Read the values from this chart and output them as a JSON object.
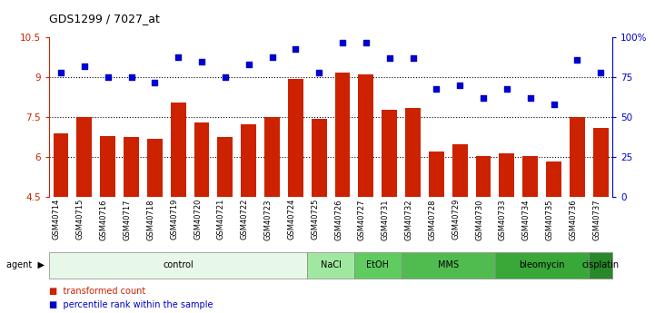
{
  "title": "GDS1299 / 7027_at",
  "categories": [
    "GSM40714",
    "GSM40715",
    "GSM40716",
    "GSM40717",
    "GSM40718",
    "GSM40719",
    "GSM40720",
    "GSM40721",
    "GSM40722",
    "GSM40723",
    "GSM40724",
    "GSM40725",
    "GSM40726",
    "GSM40727",
    "GSM40731",
    "GSM40732",
    "GSM40728",
    "GSM40729",
    "GSM40730",
    "GSM40733",
    "GSM40734",
    "GSM40735",
    "GSM40736",
    "GSM40737"
  ],
  "bar_values": [
    6.9,
    7.5,
    6.8,
    6.75,
    6.7,
    8.05,
    7.3,
    6.75,
    7.25,
    7.5,
    8.95,
    7.45,
    9.2,
    9.1,
    7.8,
    7.85,
    6.2,
    6.5,
    6.05,
    6.15,
    6.05,
    5.85,
    7.5,
    7.1
  ],
  "dot_values": [
    78,
    82,
    75,
    75,
    72,
    88,
    85,
    75,
    83,
    88,
    93,
    78,
    97,
    97,
    87,
    87,
    68,
    70,
    62,
    68,
    62,
    58,
    86,
    78
  ],
  "bar_color": "#cc2200",
  "dot_color": "#0000cc",
  "ylim_left": [
    4.5,
    10.5
  ],
  "ylim_right": [
    0,
    100
  ],
  "yticks_left": [
    4.5,
    6.0,
    7.5,
    9.0,
    10.5
  ],
  "ytick_labels_left": [
    "4.5",
    "6",
    "7.5",
    "9",
    "10.5"
  ],
  "yticks_right": [
    0,
    25,
    50,
    75,
    100
  ],
  "ytick_labels_right": [
    "0",
    "25",
    "50",
    "75",
    "100%"
  ],
  "hlines": [
    6.0,
    7.5,
    9.0
  ],
  "agent_groups": [
    {
      "label": "control",
      "start": 0,
      "end": 11,
      "color": "#e8f8e8"
    },
    {
      "label": "NaCl",
      "start": 11,
      "end": 13,
      "color": "#a0e8a0"
    },
    {
      "label": "EtOH",
      "start": 13,
      "end": 15,
      "color": "#60cc60"
    },
    {
      "label": "MMS",
      "start": 15,
      "end": 19,
      "color": "#50bc50"
    },
    {
      "label": "bleomycin",
      "start": 19,
      "end": 23,
      "color": "#38a838"
    },
    {
      "label": "cisplatin",
      "start": 23,
      "end": 24,
      "color": "#28882a"
    }
  ],
  "bar_bottom": 4.5,
  "bg_color": "#ffffff"
}
